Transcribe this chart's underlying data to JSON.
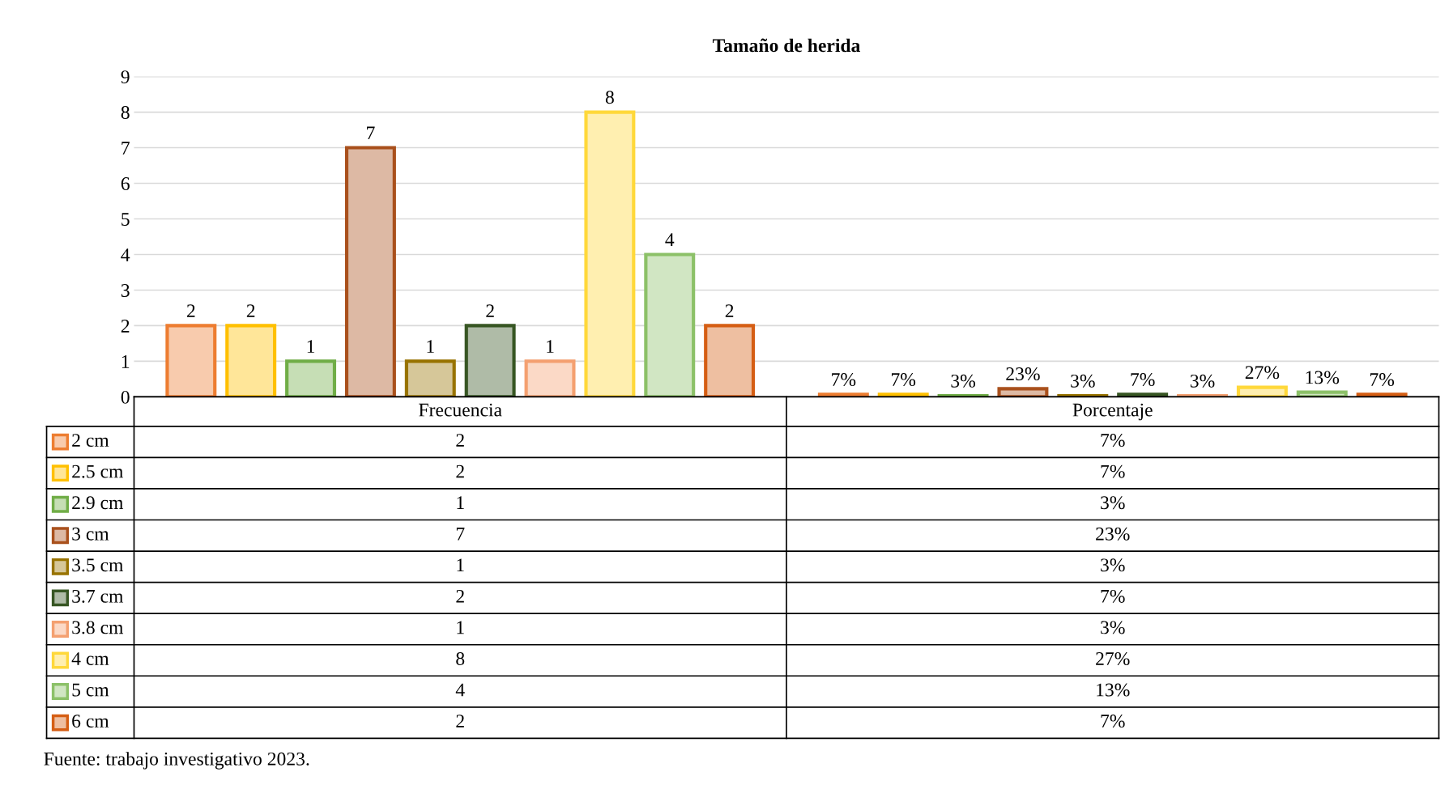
{
  "chart_data": {
    "type": "bar",
    "title": "Tamaño de herida",
    "categories": [
      "Frecuencia",
      "Porcentaje"
    ],
    "series": [
      {
        "name": "2 cm",
        "color": "#ed7d31",
        "values": [
          2,
          0.07
        ],
        "value_labels": [
          "2",
          "7%"
        ]
      },
      {
        "name": "2.5 cm",
        "color": "#ffc000",
        "values": [
          2,
          0.07
        ],
        "value_labels": [
          "2",
          "7%"
        ]
      },
      {
        "name": "2.9 cm",
        "color": "#70ad47",
        "values": [
          1,
          0.03
        ],
        "value_labels": [
          "1",
          "3%"
        ]
      },
      {
        "name": "3 cm",
        "color": "#a9501c",
        "values": [
          7,
          0.23
        ],
        "value_labels": [
          "7",
          "23%"
        ]
      },
      {
        "name": "3.5 cm",
        "color": "#987300",
        "values": [
          1,
          0.03
        ],
        "value_labels": [
          "1",
          "3%"
        ]
      },
      {
        "name": "3.7 cm",
        "color": "#375623",
        "values": [
          2,
          0.07
        ],
        "value_labels": [
          "2",
          "7%"
        ]
      },
      {
        "name": "3.8 cm",
        "color": "#f4a070",
        "values": [
          1,
          0.03
        ],
        "value_labels": [
          "1",
          "3%"
        ]
      },
      {
        "name": "4 cm",
        "color": "#ffd83a",
        "values": [
          8,
          0.27
        ],
        "value_labels": [
          "8",
          "27%"
        ]
      },
      {
        "name": "5 cm",
        "color": "#8cc168",
        "values": [
          4,
          0.13
        ],
        "value_labels": [
          "4",
          "13%"
        ]
      },
      {
        "name": "6 cm",
        "color": "#d55e14",
        "values": [
          2,
          0.07
        ],
        "value_labels": [
          "2",
          "7%"
        ]
      }
    ],
    "ylim": [
      0,
      9
    ],
    "yticks": [
      0,
      1,
      2,
      3,
      4,
      5,
      6,
      7,
      8,
      9
    ],
    "grid": "y",
    "legend": "bottom",
    "annotations": [
      "Fuente: trabajo investigativo 2023."
    ]
  }
}
